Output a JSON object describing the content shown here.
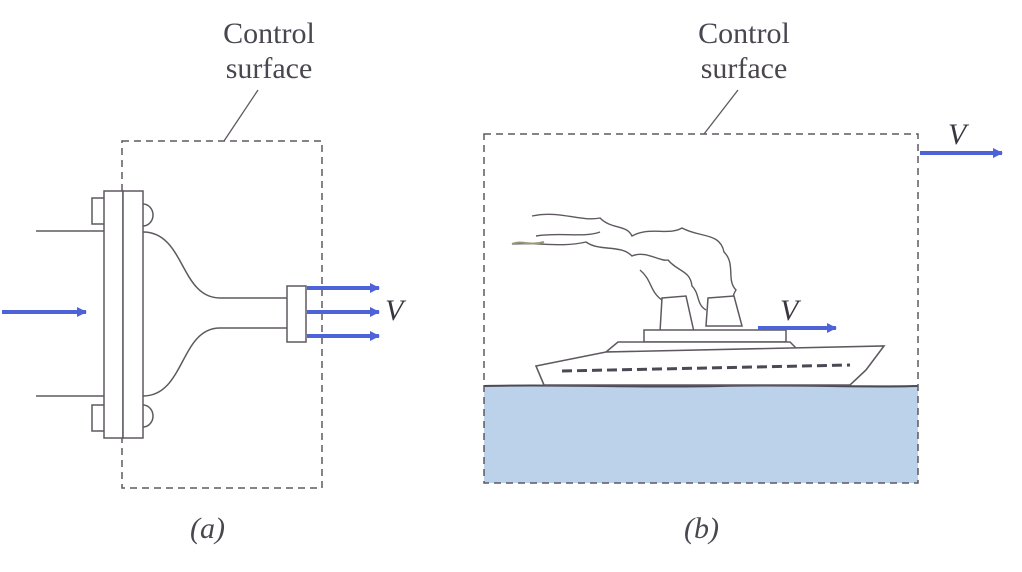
{
  "panel_a": {
    "control_surface_label_line1": "Control",
    "control_surface_label_line2": "surface",
    "velocity_label": "V",
    "caption": "(a)"
  },
  "panel_b": {
    "control_surface_label_line1": "Control",
    "control_surface_label_line2": "surface",
    "velocity_label_boundary": "V",
    "velocity_label_ship": "V",
    "caption": "(b)"
  },
  "colors": {
    "arrow": "#4f63d8",
    "line": "#5f5860",
    "water": "#bcd2ea",
    "text": "#4a4650"
  }
}
